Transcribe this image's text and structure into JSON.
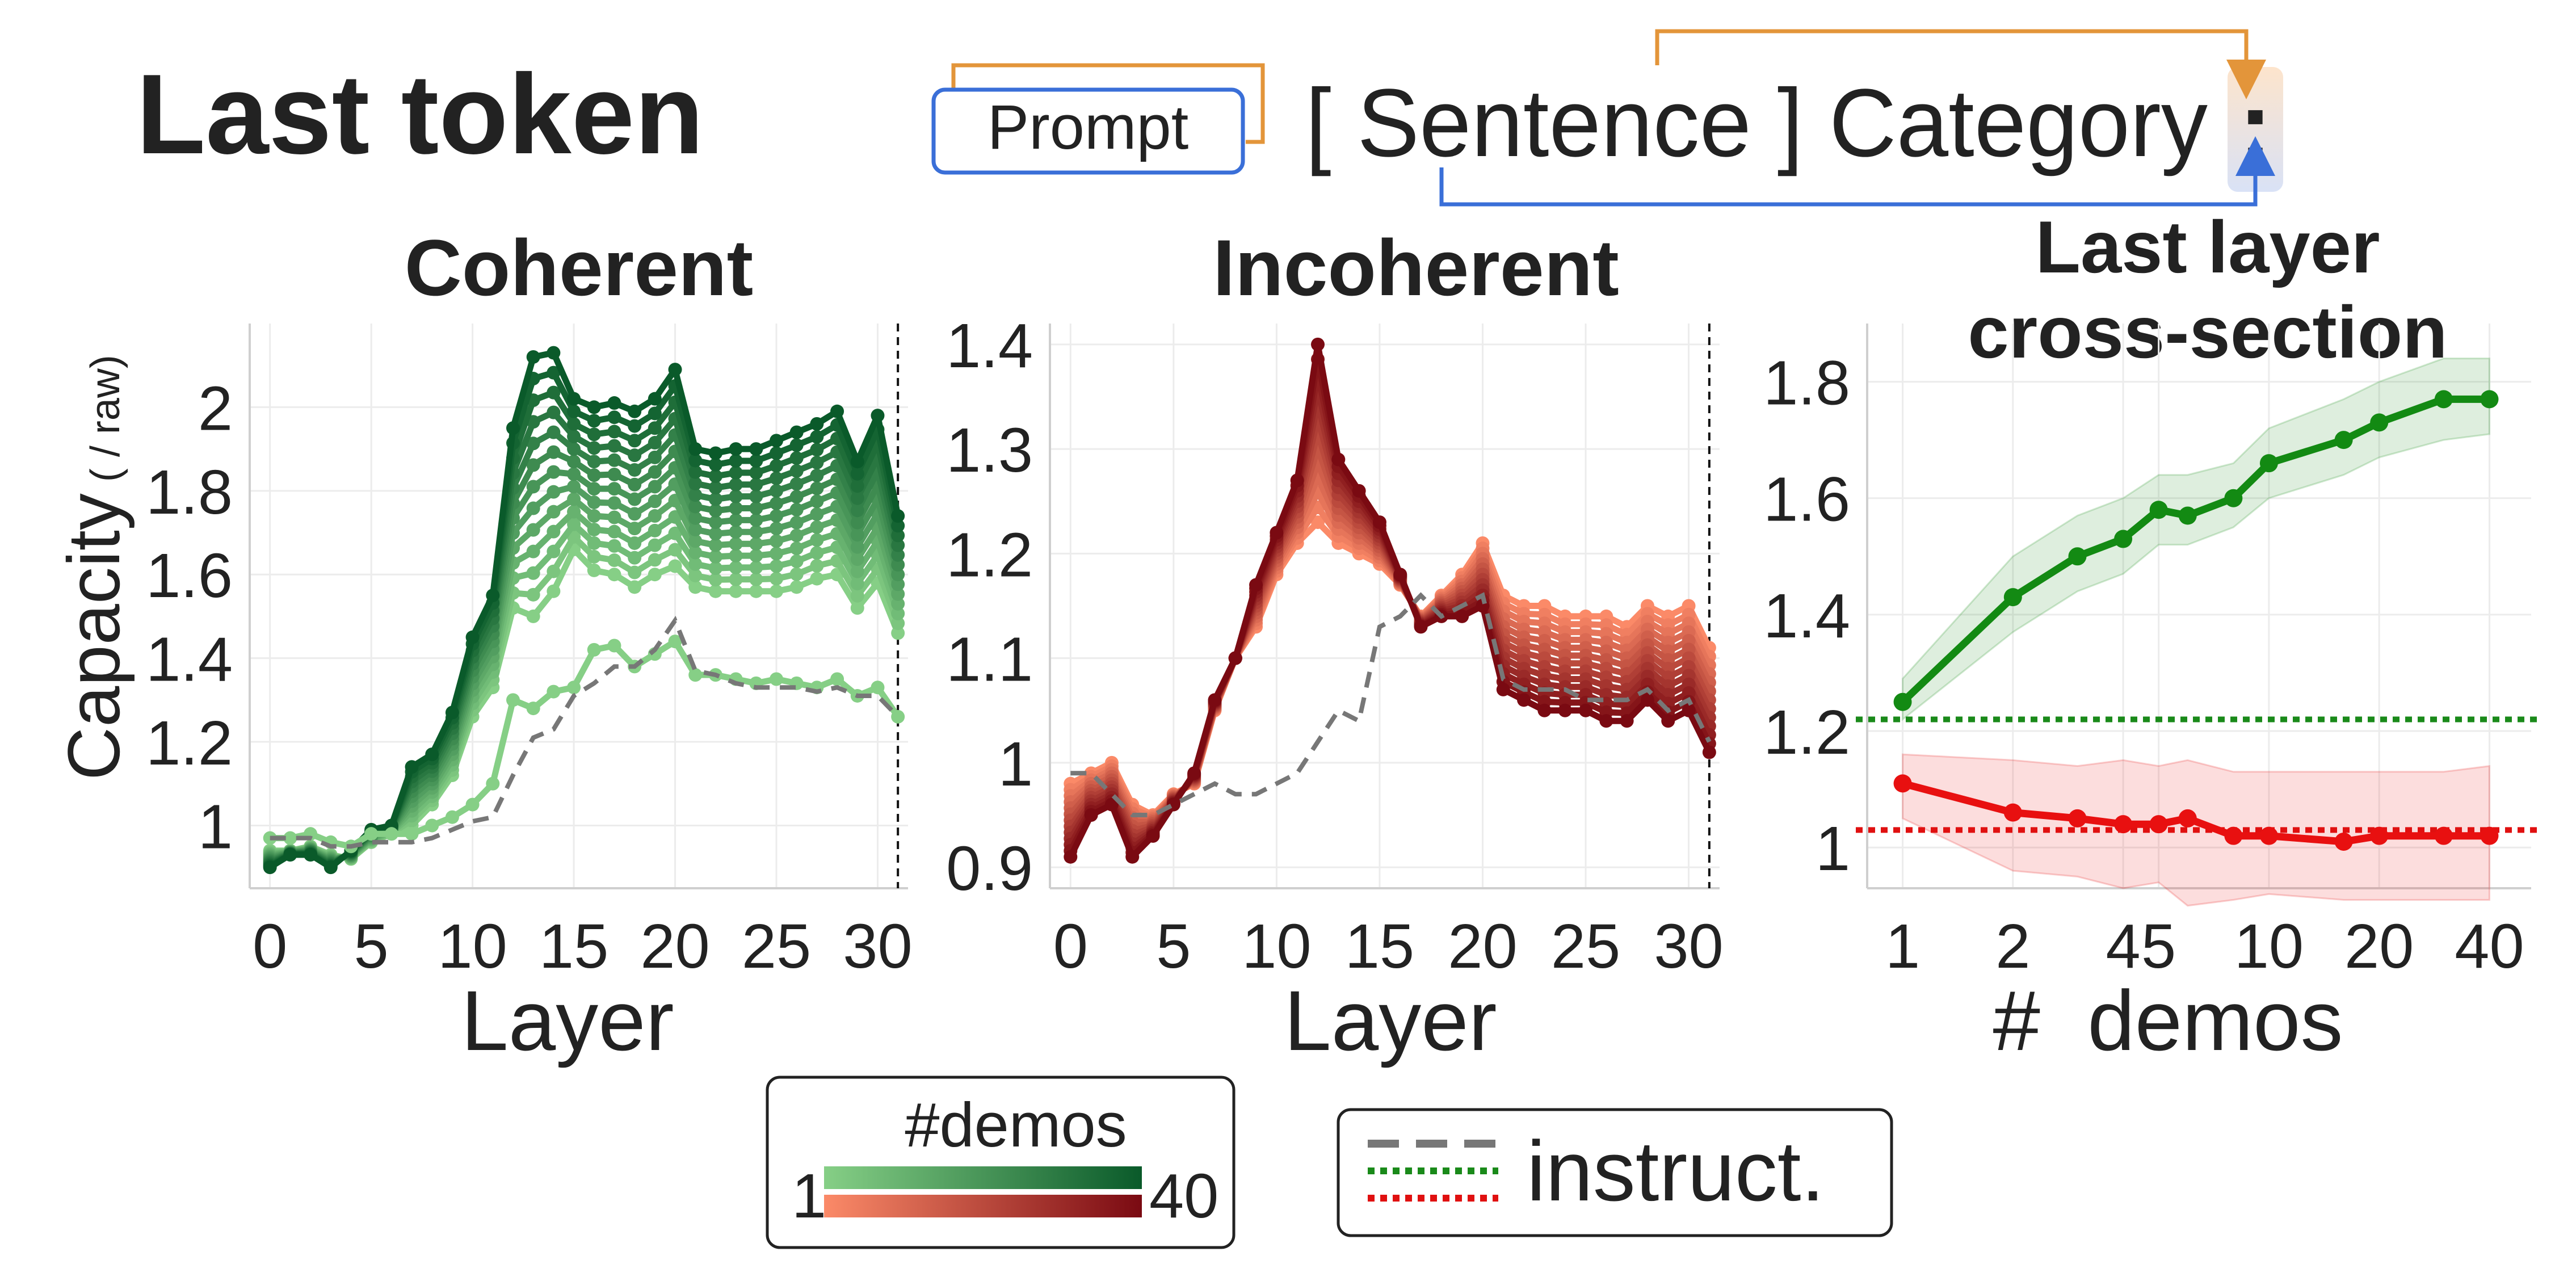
{
  "heading": "Last token",
  "diagram": {
    "prompt_label": "Prompt",
    "sentence_text": "[ Sentence ] Category",
    "colon": ":"
  },
  "colors": {
    "green_light": "#86cf86",
    "green_dark": "#0a5a2a",
    "red_light": "#fb8a68",
    "red_dark": "#7a0a12",
    "instruct_gray": "#777777",
    "instruct_green": "#1a8a1a",
    "instruct_red": "#e01010",
    "orange_arrow": "#e3953a",
    "blue_arrow": "#3a6fd8"
  },
  "legend": {
    "title": "#demos",
    "min_label": "1",
    "max_label": "40",
    "instruct_label": "instruct."
  },
  "chart_data": [
    {
      "type": "line",
      "title": "Coherent",
      "ylabel": "Capacity",
      "ylabel_unit": "( / raw)",
      "xlabel": "Layer",
      "xlim": [
        -1,
        31.5
      ],
      "ylim": [
        0.85,
        2.2
      ],
      "xticks": [
        0,
        5,
        10,
        15,
        20,
        25,
        30
      ],
      "yticks": [
        1,
        1.2,
        1.4,
        1.6,
        1.8,
        2
      ],
      "ytick_labels": [
        "1",
        "1.2",
        "1.4",
        "1.6",
        "1.8",
        "2"
      ],
      "vline_x": 31,
      "grid": true,
      "x": [
        0,
        1,
        2,
        3,
        4,
        5,
        6,
        7,
        8,
        9,
        10,
        11,
        12,
        13,
        14,
        15,
        16,
        17,
        18,
        19,
        20,
        21,
        22,
        23,
        24,
        25,
        26,
        27,
        28,
        29,
        30,
        31
      ],
      "series_profile": [
        0.97,
        0.97,
        0.99,
        0.95,
        0.94,
        0.98,
        1.0,
        1.08,
        1.12,
        1.22,
        1.35,
        1.42,
        1.88,
        2.0,
        2.05,
        1.91,
        1.91,
        1.92,
        1.91,
        1.93,
        1.98,
        1.81,
        1.81,
        1.82,
        1.81,
        1.83,
        1.85,
        1.86,
        1.91,
        1.81,
        1.88,
        1.66
      ],
      "series_low": [
        0.94,
        0.94,
        0.95,
        0.93,
        0.92,
        0.96,
        0.98,
        1.0,
        1.05,
        1.12,
        1.26,
        1.33,
        1.52,
        1.5,
        1.56,
        1.66,
        1.61,
        1.6,
        1.57,
        1.6,
        1.62,
        1.57,
        1.56,
        1.56,
        1.56,
        1.56,
        1.57,
        1.59,
        1.6,
        1.52,
        1.58,
        1.46
      ],
      "series_high": [
        0.9,
        0.93,
        0.93,
        0.9,
        0.94,
        0.99,
        1.0,
        1.14,
        1.17,
        1.27,
        1.45,
        1.55,
        1.95,
        2.12,
        2.13,
        2.02,
        2.0,
        2.01,
        1.99,
        2.02,
        2.09,
        1.9,
        1.89,
        1.9,
        1.9,
        1.92,
        1.94,
        1.96,
        1.99,
        1.87,
        1.98,
        1.74
      ],
      "one_demo": [
        0.97,
        0.97,
        0.98,
        0.96,
        0.95,
        0.98,
        0.98,
        0.98,
        1.0,
        1.02,
        1.05,
        1.1,
        1.3,
        1.28,
        1.32,
        1.33,
        1.42,
        1.43,
        1.38,
        1.41,
        1.44,
        1.36,
        1.36,
        1.35,
        1.34,
        1.35,
        1.34,
        1.33,
        1.35,
        1.31,
        1.33,
        1.26
      ],
      "n_series": 13,
      "instruct": {
        "name": "instruct.",
        "style": "dashed-gray",
        "values": [
          0.97,
          0.97,
          0.97,
          0.95,
          0.95,
          0.96,
          0.96,
          0.96,
          0.97,
          0.99,
          1.01,
          1.02,
          1.12,
          1.21,
          1.23,
          1.31,
          1.34,
          1.38,
          1.38,
          1.42,
          1.49,
          1.37,
          1.36,
          1.34,
          1.33,
          1.33,
          1.33,
          1.32,
          1.33,
          1.31,
          1.31,
          1.26
        ]
      }
    },
    {
      "type": "line",
      "title": "Incoherent",
      "ylabel": "",
      "xlabel": "Layer",
      "xlim": [
        -1,
        31.5
      ],
      "ylim": [
        0.88,
        1.42
      ],
      "xticks": [
        0,
        5,
        10,
        15,
        20,
        25,
        30
      ],
      "yticks": [
        0.9,
        1,
        1.1,
        1.2,
        1.3,
        1.4
      ],
      "ytick_labels": [
        "0.9",
        "1",
        "1.1",
        "1.2",
        "1.3",
        "1.4"
      ],
      "vline_x": 31,
      "grid": true,
      "x": [
        0,
        1,
        2,
        3,
        4,
        5,
        6,
        7,
        8,
        9,
        10,
        11,
        12,
        13,
        14,
        15,
        16,
        17,
        18,
        19,
        20,
        21,
        22,
        23,
        24,
        25,
        26,
        27,
        28,
        29,
        30,
        31
      ],
      "series_low": [
        0.98,
        0.99,
        1.0,
        0.96,
        0.95,
        0.97,
        0.98,
        1.05,
        1.1,
        1.13,
        1.18,
        1.21,
        1.23,
        1.21,
        1.2,
        1.19,
        1.17,
        1.14,
        1.16,
        1.18,
        1.21,
        1.16,
        1.15,
        1.15,
        1.14,
        1.14,
        1.14,
        1.13,
        1.15,
        1.14,
        1.15,
        1.11
      ],
      "series_high": [
        0.91,
        0.95,
        0.96,
        0.91,
        0.93,
        0.96,
        0.99,
        1.06,
        1.1,
        1.17,
        1.22,
        1.27,
        1.4,
        1.29,
        1.26,
        1.23,
        1.18,
        1.13,
        1.14,
        1.14,
        1.15,
        1.07,
        1.06,
        1.05,
        1.05,
        1.05,
        1.04,
        1.04,
        1.06,
        1.04,
        1.05,
        1.01
      ],
      "n_series": 13,
      "instruct": {
        "name": "instruct.",
        "style": "dashed-gray",
        "values": [
          0.99,
          0.99,
          0.97,
          0.95,
          0.95,
          0.96,
          0.97,
          0.98,
          0.97,
          0.97,
          0.98,
          0.99,
          1.02,
          1.05,
          1.04,
          1.13,
          1.14,
          1.16,
          1.14,
          1.15,
          1.16,
          1.08,
          1.07,
          1.07,
          1.07,
          1.06,
          1.06,
          1.06,
          1.07,
          1.05,
          1.06,
          1.02
        ]
      }
    },
    {
      "type": "line",
      "title": "Last layer\ncross-section",
      "title_lines": [
        "Last layer",
        "cross-section"
      ],
      "xlabel": "#  demos",
      "xscale": "log",
      "xlim": [
        0.8,
        52
      ],
      "ylim": [
        0.93,
        1.9
      ],
      "xticks": [
        1,
        2,
        4,
        5,
        10,
        20,
        40
      ],
      "yticks": [
        1,
        1.2,
        1.4,
        1.6,
        1.8
      ],
      "ytick_labels": [
        "1",
        "1.2",
        "1.4",
        "1.6",
        "1.8"
      ],
      "grid": true,
      "x": [
        1,
        2,
        3,
        4,
        5,
        6,
        8,
        10,
        16,
        20,
        30,
        40
      ],
      "series": [
        {
          "name": "Coherent",
          "color": "#138a13",
          "values": [
            1.25,
            1.43,
            1.5,
            1.53,
            1.58,
            1.57,
            1.6,
            1.66,
            1.7,
            1.73,
            1.77,
            1.77
          ],
          "band_low": [
            1.22,
            1.37,
            1.44,
            1.47,
            1.52,
            1.52,
            1.55,
            1.6,
            1.64,
            1.67,
            1.7,
            1.71
          ],
          "band_high": [
            1.29,
            1.5,
            1.57,
            1.6,
            1.64,
            1.64,
            1.66,
            1.72,
            1.77,
            1.8,
            1.84,
            1.84
          ]
        },
        {
          "name": "Incoherent",
          "color": "#e81010",
          "values": [
            1.11,
            1.06,
            1.05,
            1.04,
            1.04,
            1.05,
            1.02,
            1.02,
            1.01,
            1.02,
            1.02,
            1.02
          ],
          "band_low": [
            1.05,
            0.96,
            0.95,
            0.93,
            0.94,
            0.9,
            0.91,
            0.92,
            0.91,
            0.91,
            0.91,
            0.91
          ],
          "band_high": [
            1.16,
            1.15,
            1.14,
            1.15,
            1.14,
            1.15,
            1.13,
            1.13,
            1.13,
            1.13,
            1.13,
            1.14
          ]
        }
      ],
      "hlines": [
        {
          "name": "instruct. coherent",
          "y": 1.22,
          "color": "#1a8a1a",
          "style": "dotted"
        },
        {
          "name": "instruct. incoherent",
          "y": 1.03,
          "color": "#e01010",
          "style": "dotted"
        }
      ]
    }
  ]
}
